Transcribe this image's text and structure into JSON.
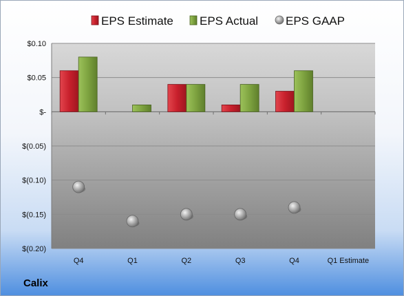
{
  "company": "Calix",
  "colors": {
    "estimate": "#c8202c",
    "actual": "#7ea340",
    "gaap": "#a6a6a6"
  },
  "chart_data": {
    "type": "bar",
    "title": "",
    "xlabel": "",
    "ylabel": "",
    "categories": [
      "Q4",
      "Q1",
      "Q2",
      "Q3",
      "Q4",
      "Q1 Estimate"
    ],
    "series": [
      {
        "name": "EPS Estimate",
        "kind": "bar",
        "values": [
          0.06,
          null,
          0.04,
          0.01,
          0.03,
          null
        ]
      },
      {
        "name": "EPS Actual",
        "kind": "bar",
        "values": [
          0.08,
          0.01,
          0.04,
          0.04,
          0.06,
          null
        ]
      },
      {
        "name": "EPS GAAP",
        "kind": "point",
        "values": [
          -0.11,
          -0.16,
          -0.15,
          -0.15,
          -0.14,
          null
        ]
      }
    ],
    "ylim": [
      -0.2,
      0.1
    ],
    "yticks": [
      0.1,
      0.05,
      0,
      -0.05,
      -0.1,
      -0.15,
      -0.2
    ],
    "ytick_labels": [
      "$0.10",
      "$0.05",
      "$-",
      "$(0.05)",
      "$(0.10)",
      "$(0.15)",
      "$(0.20)"
    ],
    "grid": true,
    "legend_position": "top"
  }
}
